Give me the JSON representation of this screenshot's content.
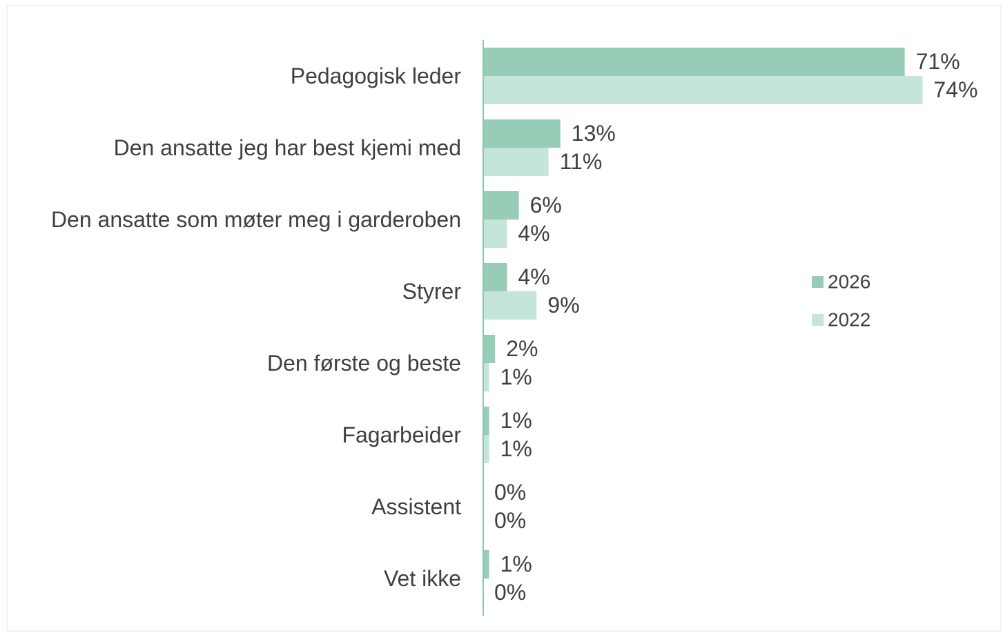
{
  "chart_data": {
    "type": "barh",
    "categories": [
      "Pedagogisk leder",
      "Den ansatte jeg har best kjemi med",
      "Den ansatte som møter meg i garderoben",
      "Styrer",
      "Den første og beste",
      "Fagarbeider",
      "Assistent",
      "Vet ikke"
    ],
    "series": [
      {
        "name": "2026",
        "color": "#97ccb7",
        "values": [
          71,
          13,
          6,
          4,
          2,
          1,
          0,
          1
        ],
        "value_labels": [
          "71%",
          "13%",
          "6%",
          "4%",
          "2%",
          "1%",
          "0%",
          "1%"
        ]
      },
      {
        "name": "2022",
        "color": "#c5e5d9",
        "values": [
          74,
          11,
          4,
          9,
          1,
          1,
          0,
          0
        ],
        "value_labels": [
          "74%",
          "11%",
          "4%",
          "9%",
          "1%",
          "1%",
          "0%",
          "0%"
        ]
      }
    ],
    "xlim": [
      0,
      80
    ],
    "legend": "right"
  }
}
